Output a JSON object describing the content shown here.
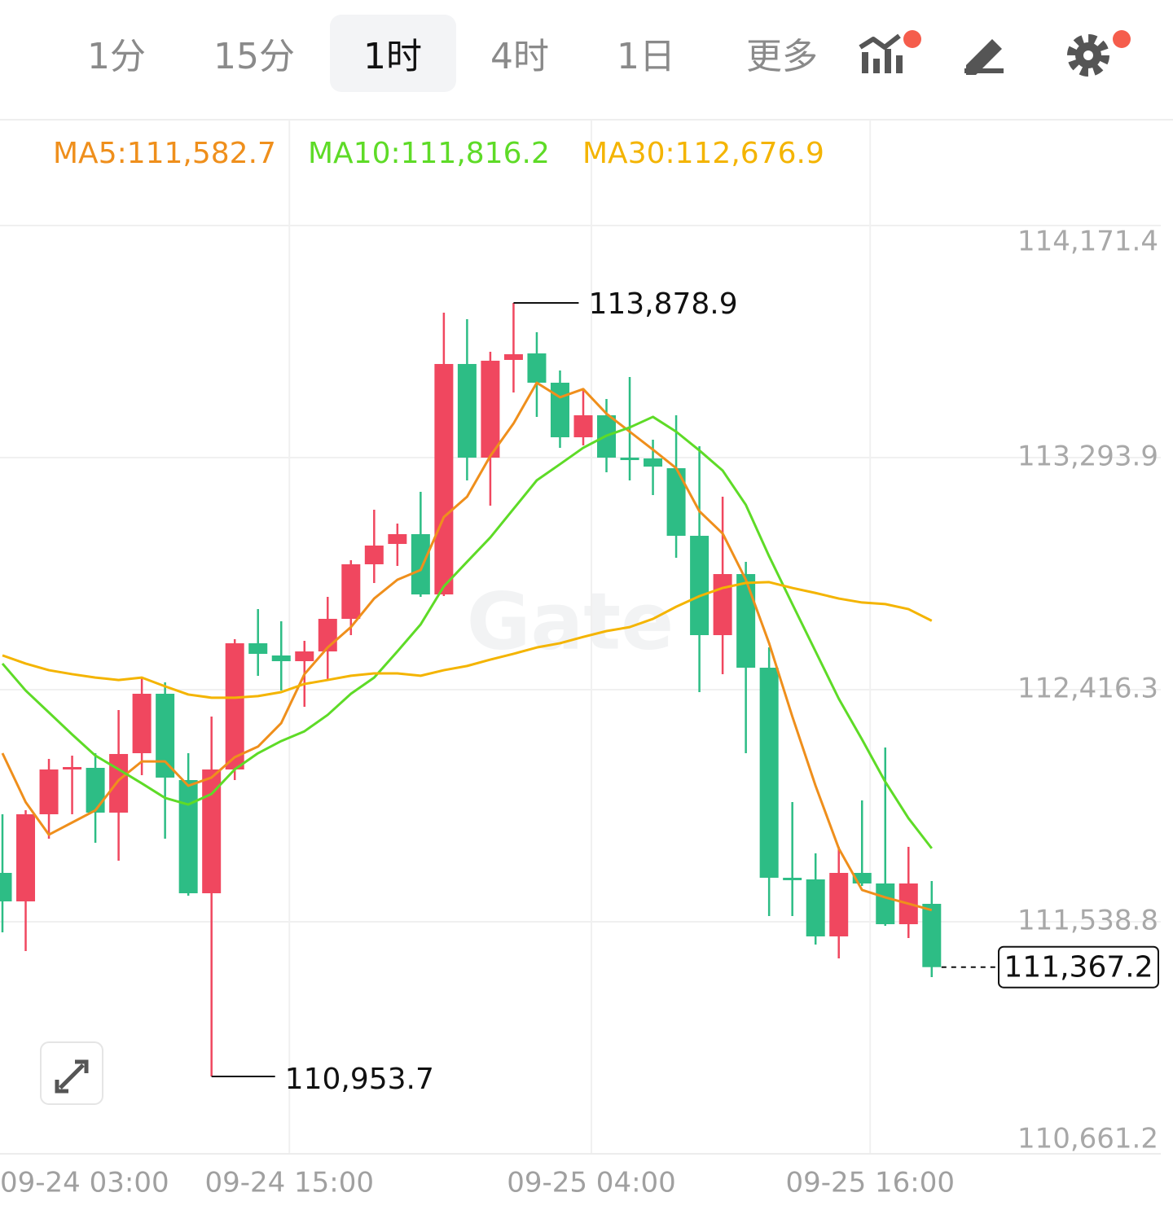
{
  "toolbar": {
    "tabs": [
      "1分",
      "15分",
      "1时",
      "4时",
      "1日",
      "更多"
    ],
    "active": 2
  },
  "chart_data": {
    "type": "candlestick",
    "watermark": "Gate",
    "categories": [
      "09-24 03:00",
      null,
      null,
      null,
      null,
      null,
      null,
      null,
      null,
      null,
      null,
      null,
      "09-24 15:00",
      null,
      null,
      null,
      null,
      null,
      null,
      null,
      null,
      null,
      null,
      null,
      null,
      "09-25 04:00",
      null,
      null,
      null,
      null,
      null,
      null,
      null,
      null,
      null,
      null,
      null,
      "09-25 16:00",
      null,
      null,
      null
    ],
    "open": [
      111723.5,
      111615.8,
      111945.2,
      112117.6,
      112120.7,
      111951.4,
      112176.1,
      112400.9,
      112074.5,
      111646.5,
      112114.6,
      112591.8,
      112545.6,
      112524.1,
      112561.0,
      112684.2,
      112890.5,
      112967.4,
      113004.4,
      112776.5,
      113647.9,
      113293.8,
      113663.3,
      113687.9,
      113577.1,
      113370.8,
      113453.9,
      113293.8,
      113290.7,
      113253.8,
      112998.2,
      112622.6,
      112853.5,
      112499.4,
      111705.1,
      111698.9,
      111483.4,
      111723.5,
      111683.5,
      111529.5,
      111606.5
    ],
    "high": [
      111945.2,
      111960.6,
      112154.6,
      112166.9,
      112176.1,
      112339.3,
      112462.5,
      112444.0,
      112176.1,
      112314.7,
      112607.2,
      112721.1,
      112674.9,
      112601.0,
      112767.3,
      112905.9,
      113096.8,
      113044.4,
      113164.5,
      113841.9,
      113817.2,
      113694.1,
      113878.9,
      113768.0,
      113623.3,
      113552.5,
      113515.5,
      113598.6,
      113361.6,
      113453.9,
      113336.9,
      113146.0,
      112899.7,
      112576.4,
      111991.4,
      111797.4,
      111822.1,
      111997.6,
      112197.7,
      111822.1,
      111692.7
    ],
    "low": [
      111498.8,
      111427.9,
      111852.8,
      111945.2,
      111837.4,
      111769.7,
      112093.0,
      111852.8,
      111637.3,
      110953.7,
      112074.5,
      112468.6,
      112413.2,
      112351.6,
      112453.2,
      112622.6,
      112819.6,
      112884.3,
      112767.3,
      112770.4,
      113207.6,
      113112.2,
      113540.1,
      113447.8,
      113330.8,
      113340.0,
      113238.4,
      113207.6,
      113152.2,
      112915.1,
      112407.1,
      112474.8,
      112176.1,
      111560.3,
      111560.3,
      111452.6,
      111400.2,
      111674.3,
      111523.4,
      111477.2,
      111329.4
    ],
    "close": [
      111615.8,
      111945.2,
      112114.6,
      112123.8,
      111951.4,
      112173.1,
      112400.9,
      112083.8,
      111646.5,
      112114.6,
      112591.8,
      112551.8,
      112524.1,
      112561.0,
      112684.2,
      112890.5,
      112961.3,
      113004.4,
      112776.5,
      113647.9,
      113293.8,
      113660.2,
      113684.8,
      113577.1,
      113370.8,
      113453.9,
      113293.8,
      113284.6,
      113259.9,
      112998.2,
      112622.6,
      112853.5,
      112499.4,
      111705.1,
      111698.9,
      111483.4,
      111723.5,
      111683.5,
      111529.5,
      111683.5,
      111367.2
    ],
    "up_color": "#f0475f",
    "down_color": "#2dbd85",
    "series": [
      {
        "name": "MA5:111,582.7",
        "color": "#ef8f1c",
        "values": [
          112176,
          111991,
          111868,
          111914,
          111960,
          112074,
          112145,
          112145,
          112053,
          112084,
          112161,
          112201,
          112290,
          112475,
          112576,
          112653,
          112761,
          112832,
          112869,
          113069,
          113146,
          113300,
          113423,
          113577,
          113522,
          113553,
          113460,
          113392,
          113324,
          113254,
          113091,
          113007,
          112832,
          112592,
          112315,
          112053,
          111816,
          111659,
          111631,
          111607,
          111582.7
        ]
      },
      {
        "name": "MA10:111,816.2",
        "color": "#5edb27",
        "values": [
          112515,
          112413,
          112330,
          112247,
          112167,
          112115,
          112062,
          112007,
          111982,
          112022,
          112115,
          112176,
          112222,
          112259,
          112321,
          112401,
          112462,
          112561,
          112663,
          112807,
          112900,
          112992,
          113100,
          113208,
          113269,
          113331,
          113377,
          113408,
          113448,
          113392,
          113321,
          113245,
          113115,
          112921,
          112740,
          112561,
          112382,
          112228,
          112068,
          111930,
          111816.2
        ]
      },
      {
        "name": "MA30:112,676.9",
        "color": "#f4b400",
        "values": [
          112546,
          112515,
          112490,
          112475,
          112462,
          112453,
          112462,
          112429,
          112398,
          112386,
          112386,
          112392,
          112407,
          112438,
          112453,
          112469,
          112478,
          112478,
          112469,
          112490,
          112506,
          112530,
          112552,
          112576,
          112592,
          112616,
          112638,
          112653,
          112684,
          112730,
          112770,
          112801,
          112820,
          112823,
          112801,
          112782,
          112761,
          112746,
          112740,
          112721,
          112676.9
        ]
      }
    ],
    "ylim": [
      110661.2,
      114171.4
    ],
    "yticks": [
      {
        "value": 114171.4,
        "label": "114,171.4"
      },
      {
        "value": 113293.9,
        "label": "113,293.9"
      },
      {
        "value": 112416.3,
        "label": "112,416.3"
      },
      {
        "value": 111538.8,
        "label": "111,538.8"
      },
      {
        "value": 110661.2,
        "label": "110,661.2"
      }
    ],
    "grid": true,
    "annotations": {
      "high": {
        "value": 113878.9,
        "label": "113,878.9"
      },
      "low": {
        "value": 110953.7,
        "label": "110,953.7"
      },
      "last": {
        "value": 111367.2,
        "label": "111,367.2"
      }
    }
  }
}
